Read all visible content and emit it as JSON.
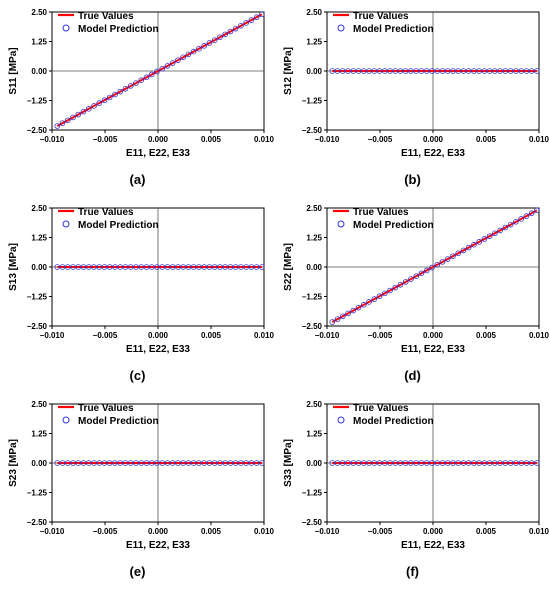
{
  "colors": {
    "true_line": "#ff0000",
    "pred_marker": "#3333cc",
    "axis": "#000000",
    "zero_line": "#555555"
  },
  "chart_data": [
    {
      "type": "line",
      "caption": "(a)",
      "xlabel": "E11, E22, E33",
      "ylabel": "S11 [MPa]",
      "xlim": [
        -0.01,
        0.01
      ],
      "ylim": [
        -2.5,
        2.5
      ],
      "xticks": [
        -0.01,
        -0.005,
        0,
        0.005,
        0.01
      ],
      "xtick_labels": [
        "−0.010",
        "−0.005",
        "0.000",
        "0.005",
        "0.010"
      ],
      "yticks": [
        2.5,
        1.25,
        0,
        -1.25,
        -2.5
      ],
      "ytick_labels": [
        "2.50",
        "1.25",
        "0.00",
        "−1.25",
        "−2.50"
      ],
      "legend": "top-left",
      "series": [
        {
          "name": "True Values",
          "kind": "line",
          "x": [
            -0.0095,
            0.0098
          ],
          "y": [
            -2.33,
            2.4
          ]
        },
        {
          "name": "Model Prediction",
          "kind": "scatter",
          "x_start": -0.0095,
          "x_end": 0.0098,
          "count": 40,
          "y_start": -2.33,
          "y_end": 2.4
        }
      ]
    },
    {
      "type": "line",
      "caption": "(b)",
      "xlabel": "E11, E22, E33",
      "ylabel": "S12 [MPa]",
      "xlim": [
        -0.01,
        0.01
      ],
      "ylim": [
        -2.5,
        2.5
      ],
      "xticks": [
        -0.01,
        -0.005,
        0,
        0.005,
        0.01
      ],
      "xtick_labels": [
        "−0.010",
        "−0.005",
        "0.000",
        "0.005",
        "0.010"
      ],
      "yticks": [
        2.5,
        1.25,
        0,
        -1.25,
        -2.5
      ],
      "ytick_labels": [
        "2.50",
        "1.25",
        "0.00",
        "−1.25",
        "−2.50"
      ],
      "legend": "top-left",
      "series": [
        {
          "name": "True Values",
          "kind": "line",
          "x": [
            -0.0095,
            0.0098
          ],
          "y": [
            0,
            0
          ]
        },
        {
          "name": "Model Prediction",
          "kind": "scatter",
          "x_start": -0.0095,
          "x_end": 0.0098,
          "count": 40,
          "y_start": 0,
          "y_end": 0
        }
      ]
    },
    {
      "type": "line",
      "caption": "(c)",
      "xlabel": "E11, E22, E33",
      "ylabel": "S13 [MPa]",
      "xlim": [
        -0.01,
        0.01
      ],
      "ylim": [
        -2.5,
        2.5
      ],
      "xticks": [
        -0.01,
        -0.005,
        0,
        0.005,
        0.01
      ],
      "xtick_labels": [
        "−0.010",
        "−0.005",
        "0.000",
        "0.005",
        "0.010"
      ],
      "yticks": [
        2.5,
        1.25,
        0,
        -1.25,
        -2.5
      ],
      "ytick_labels": [
        "2.50",
        "1.25",
        "0.00",
        "−1.25",
        "−2.50"
      ],
      "legend": "top-left",
      "series": [
        {
          "name": "True Values",
          "kind": "line",
          "x": [
            -0.0095,
            0.0098
          ],
          "y": [
            0,
            0
          ]
        },
        {
          "name": "Model Prediction",
          "kind": "scatter",
          "x_start": -0.0095,
          "x_end": 0.0098,
          "count": 40,
          "y_start": 0,
          "y_end": 0
        }
      ]
    },
    {
      "type": "line",
      "caption": "(d)",
      "xlabel": "E11, E22, E33",
      "ylabel": "S22 [MPa]",
      "xlim": [
        -0.01,
        0.01
      ],
      "ylim": [
        -2.5,
        2.5
      ],
      "xticks": [
        -0.01,
        -0.005,
        0,
        0.005,
        0.01
      ],
      "xtick_labels": [
        "−0.010",
        "−0.005",
        "0.000",
        "0.005",
        "0.010"
      ],
      "yticks": [
        2.5,
        1.25,
        0,
        -1.25,
        -2.5
      ],
      "ytick_labels": [
        "2.50",
        "1.25",
        "0.00",
        "−1.25",
        "−2.50"
      ],
      "legend": "top-left",
      "series": [
        {
          "name": "True Values",
          "kind": "line",
          "x": [
            -0.0095,
            0.0098
          ],
          "y": [
            -2.33,
            2.4
          ]
        },
        {
          "name": "Model Prediction",
          "kind": "scatter",
          "x_start": -0.0095,
          "x_end": 0.0098,
          "count": 40,
          "y_start": -2.33,
          "y_end": 2.4
        }
      ]
    },
    {
      "type": "line",
      "caption": "(e)",
      "xlabel": "E11, E22, E33",
      "ylabel": "S23 [MPa]",
      "xlim": [
        -0.01,
        0.01
      ],
      "ylim": [
        -2.5,
        2.5
      ],
      "xticks": [
        -0.01,
        -0.005,
        0,
        0.005,
        0.01
      ],
      "xtick_labels": [
        "−0.010",
        "−0.005",
        "0.000",
        "0.005",
        "0.010"
      ],
      "yticks": [
        2.5,
        1.25,
        0,
        -1.25,
        -2.5
      ],
      "ytick_labels": [
        "2.50",
        "1.25",
        "0.00",
        "−1.25",
        "−2.50"
      ],
      "legend": "top-left",
      "series": [
        {
          "name": "True Values",
          "kind": "line",
          "x": [
            -0.0095,
            0.0098
          ],
          "y": [
            0,
            0
          ]
        },
        {
          "name": "Model Prediction",
          "kind": "scatter",
          "x_start": -0.0095,
          "x_end": 0.0098,
          "count": 40,
          "y_start": 0,
          "y_end": 0
        }
      ]
    },
    {
      "type": "line",
      "caption": "(f)",
      "xlabel": "E11, E22, E33",
      "ylabel": "S33 [MPa]",
      "xlim": [
        -0.01,
        0.01
      ],
      "ylim": [
        -2.5,
        2.5
      ],
      "xticks": [
        -0.01,
        -0.005,
        0,
        0.005,
        0.01
      ],
      "xtick_labels": [
        "−0.010",
        "−0.005",
        "0.000",
        "0.005",
        "0.010"
      ],
      "yticks": [
        2.5,
        1.25,
        0,
        -1.25,
        -2.5
      ],
      "ytick_labels": [
        "2.50",
        "1.25",
        "0.00",
        "−1.25",
        "−2.50"
      ],
      "legend": "top-left",
      "series": [
        {
          "name": "True Values",
          "kind": "line",
          "x": [
            -0.0095,
            0.0098
          ],
          "y": [
            0,
            0
          ]
        },
        {
          "name": "Model Prediction",
          "kind": "scatter",
          "x_start": -0.0095,
          "x_end": 0.0098,
          "count": 40,
          "y_start": 0,
          "y_end": 0
        }
      ]
    }
  ]
}
